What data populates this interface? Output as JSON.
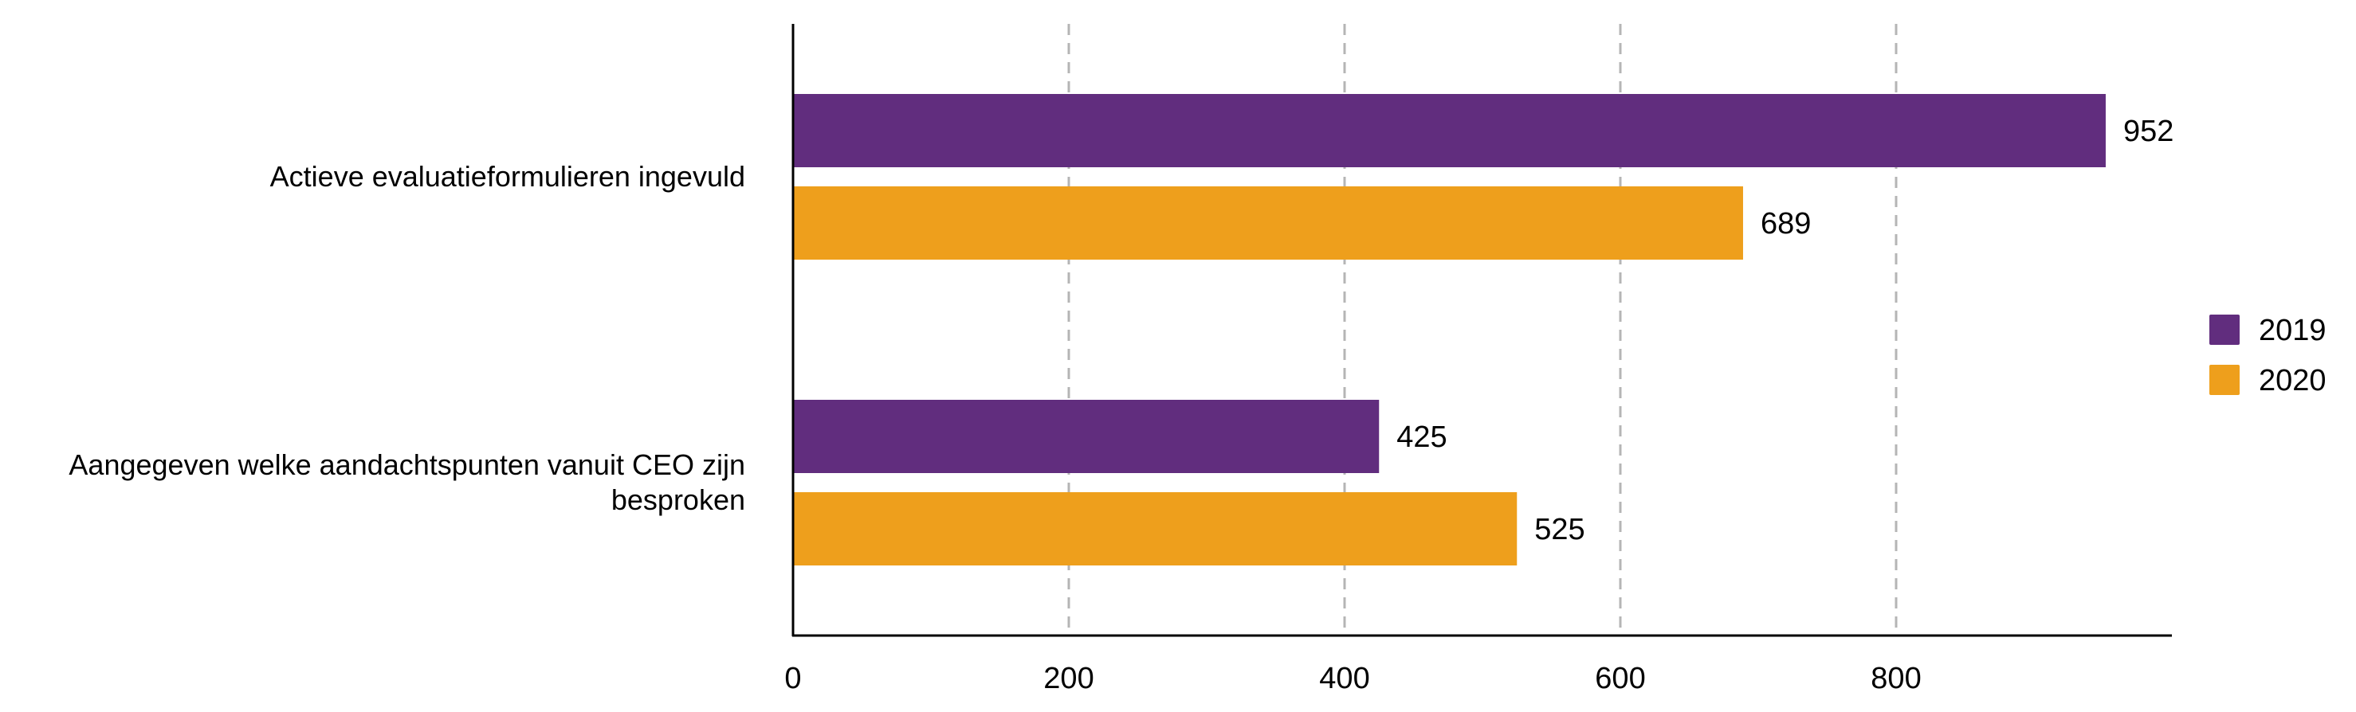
{
  "chart_data": {
    "type": "bar",
    "orientation": "horizontal",
    "title": "",
    "xlabel": "",
    "ylabel": "",
    "categories": [
      [
        "Actieve evaluatieformulieren ingevuld"
      ],
      [
        "Aangegeven welke aandachtspunten vanuit CEO zijn",
        "besproken"
      ]
    ],
    "series": [
      {
        "name": "2019",
        "values": [
          952,
          425
        ],
        "color": "#612D7E"
      },
      {
        "name": "2020",
        "values": [
          689,
          525
        ],
        "color": "#EE9F1C"
      }
    ],
    "xlim": [
      0,
      1000
    ],
    "xticks": [
      0,
      200,
      400,
      600,
      800
    ],
    "grid": "vertical dashed",
    "legend": "right"
  }
}
